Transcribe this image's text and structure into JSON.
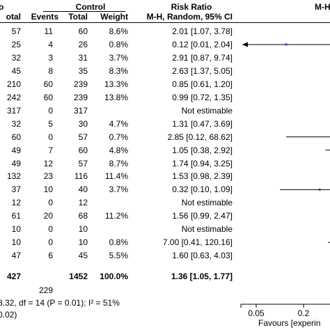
{
  "chart_data": {
    "type": "forest",
    "headers": {
      "control_group": "Control",
      "effect_group": "Risk Ratio",
      "col_total_exp": "otal",
      "col_events": "Events",
      "col_total": "Total",
      "col_weight": "Weight",
      "col_ci": "M-H, Random, 95% CI",
      "col_plot": "M-H",
      "col_top_left": "o"
    },
    "rows": [
      {
        "exp_total": "57",
        "events": "11",
        "total": "60",
        "weight": "8.6%",
        "ci": "2.01 [1.07, 3.78]",
        "rr": 2.01,
        "lo": 1.07,
        "hi": 3.78
      },
      {
        "exp_total": "25",
        "events": "4",
        "total": "26",
        "weight": "0.8%",
        "ci": "0.12 [0.01, 2.04]",
        "rr": 0.12,
        "lo": 0.01,
        "hi": 2.04
      },
      {
        "exp_total": "32",
        "events": "3",
        "total": "31",
        "weight": "3.7%",
        "ci": "2.91 [0.87, 9.74]",
        "rr": 2.91,
        "lo": 0.87,
        "hi": 9.74
      },
      {
        "exp_total": "45",
        "events": "8",
        "total": "35",
        "weight": "8.3%",
        "ci": "2.63 [1.37, 5.05]",
        "rr": 2.63,
        "lo": 1.37,
        "hi": 5.05
      },
      {
        "exp_total": "210",
        "events": "60",
        "total": "239",
        "weight": "13.3%",
        "ci": "0.85 [0.61, 1.20]",
        "rr": 0.85,
        "lo": 0.61,
        "hi": 1.2
      },
      {
        "exp_total": "242",
        "events": "60",
        "total": "239",
        "weight": "13.8%",
        "ci": "0.99 [0.72, 1.35]",
        "rr": 0.99,
        "lo": 0.72,
        "hi": 1.35
      },
      {
        "exp_total": "317",
        "events": "0",
        "total": "317",
        "weight": "",
        "ci": "Not estimable",
        "rr": null,
        "lo": null,
        "hi": null
      },
      {
        "exp_total": "32",
        "events": "5",
        "total": "30",
        "weight": "4.7%",
        "ci": "1.31 [0.47, 3.69]",
        "rr": 1.31,
        "lo": 0.47,
        "hi": 3.69
      },
      {
        "exp_total": "60",
        "events": "0",
        "total": "57",
        "weight": "0.7%",
        "ci": "2.85 [0.12, 68.62]",
        "rr": 2.85,
        "lo": 0.12,
        "hi": 68.62
      },
      {
        "exp_total": "49",
        "events": "7",
        "total": "60",
        "weight": "4.8%",
        "ci": "1.05 [0.38, 2.92]",
        "rr": 1.05,
        "lo": 0.38,
        "hi": 2.92
      },
      {
        "exp_total": "49",
        "events": "12",
        "total": "57",
        "weight": "8.7%",
        "ci": "1.74 [0.94, 3.25]",
        "rr": 1.74,
        "lo": 0.94,
        "hi": 3.25
      },
      {
        "exp_total": "132",
        "events": "23",
        "total": "116",
        "weight": "11.4%",
        "ci": "1.53 [0.98, 2.39]",
        "rr": 1.53,
        "lo": 0.98,
        "hi": 2.39
      },
      {
        "exp_total": "37",
        "events": "10",
        "total": "40",
        "weight": "3.7%",
        "ci": "0.32 [0.10, 1.09]",
        "rr": 0.32,
        "lo": 0.1,
        "hi": 1.09
      },
      {
        "exp_total": "12",
        "events": "0",
        "total": "12",
        "weight": "",
        "ci": "Not estimable",
        "rr": null,
        "lo": null,
        "hi": null
      },
      {
        "exp_total": "61",
        "events": "20",
        "total": "68",
        "weight": "11.2%",
        "ci": "1.56 [0.99, 2.47]",
        "rr": 1.56,
        "lo": 0.99,
        "hi": 2.47
      },
      {
        "exp_total": "10",
        "events": "0",
        "total": "10",
        "weight": "",
        "ci": "Not estimable",
        "rr": null,
        "lo": null,
        "hi": null
      },
      {
        "exp_total": "10",
        "events": "0",
        "total": "10",
        "weight": "0.8%",
        "ci": "7.00 [0.41, 120.16]",
        "rr": 7.0,
        "lo": 0.41,
        "hi": 120.16
      },
      {
        "exp_total": "47",
        "events": "6",
        "total": "45",
        "weight": "5.5%",
        "ci": "1.60 [0.63, 4.03]",
        "rr": 1.6,
        "lo": 0.63,
        "hi": 4.03
      }
    ],
    "total_row": {
      "exp_total": "427",
      "total": "1452",
      "weight": "100.0%",
      "ci": "1.36 [1.05, 1.77]",
      "rr": 1.36,
      "lo": 1.05,
      "hi": 1.77
    },
    "total_events_control": "229",
    "heterogeneity": "8.32, df = 14 (P = 0.01); I² = 51%",
    "overall_test": "0.02)",
    "x_axis": {
      "scale": "log",
      "ticks": [
        0.05,
        0.2
      ],
      "tick_labels": [
        "0.05",
        "0.2"
      ],
      "reference_line": 1
    },
    "favours_left": "Favours [experin"
  }
}
